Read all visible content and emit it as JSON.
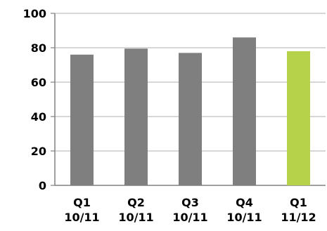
{
  "chart_data": {
    "type": "bar",
    "categories": [
      [
        "Q1",
        "10/11"
      ],
      [
        "Q2",
        "10/11"
      ],
      [
        "Q3",
        "10/11"
      ],
      [
        "Q4",
        "10/11"
      ],
      [
        "Q1",
        "11/12"
      ]
    ],
    "values": [
      76,
      79.5,
      77,
      86,
      78
    ],
    "bar_colors": [
      "#7f7f7f",
      "#7f7f7f",
      "#7f7f7f",
      "#7f7f7f",
      "#b6d24a"
    ],
    "ylim": [
      0,
      100
    ],
    "yticks": [
      0,
      20,
      40,
      60,
      80,
      100
    ],
    "grid": true,
    "title": "",
    "xlabel": "",
    "ylabel": ""
  }
}
